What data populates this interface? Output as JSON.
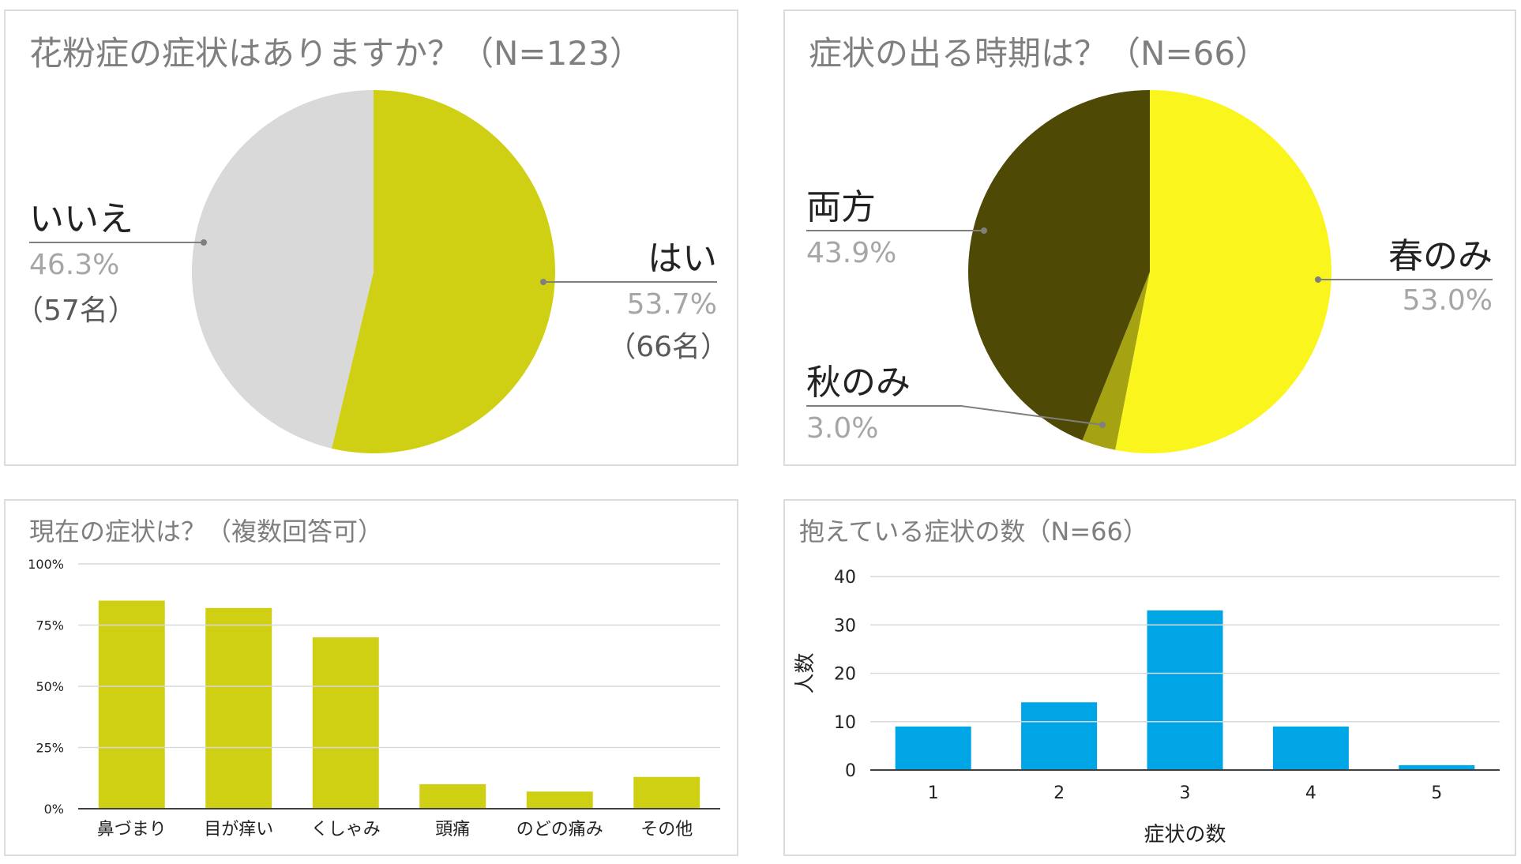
{
  "colors": {
    "yes": "#cfd013",
    "no": "#d9d9d9",
    "spring": "#faf51d",
    "autumn": "#a6a312",
    "both": "#4e4a05",
    "bar3": "#cfd013",
    "bar4": "#00a5e6",
    "gridline": "#d9d9d9",
    "leader": "#7f7f7f"
  },
  "chart_data": [
    {
      "type": "pie",
      "title": "花粉症の症状はありますか？（N=123）",
      "slices": [
        {
          "name": "はい",
          "percent_label": "53.7%",
          "count_label": "（66名）",
          "value": 53.7,
          "color_key": "yes"
        },
        {
          "name": "いいえ",
          "percent_label": "46.3%",
          "count_label": "（57名）",
          "value": 46.3,
          "color_key": "no"
        }
      ]
    },
    {
      "type": "pie",
      "title": "症状の出る時期は？（N=66）",
      "slices": [
        {
          "name": "春のみ",
          "percent_label": "53.0%",
          "value": 53.0,
          "color_key": "spring"
        },
        {
          "name": "秋のみ",
          "percent_label": "3.0%",
          "value": 3.0,
          "color_key": "autumn"
        },
        {
          "name": "両方",
          "percent_label": "43.9%",
          "value": 43.9,
          "color_key": "both"
        }
      ]
    },
    {
      "type": "bar",
      "title": "現在の症状は？（複数回答可）",
      "categories": [
        "鼻づまり",
        "目が痒い",
        "くしゃみ",
        "頭痛",
        "のどの痛み",
        "その他"
      ],
      "values": [
        85,
        82,
        70,
        10,
        7,
        13
      ],
      "ylim": [
        0,
        100
      ],
      "yticks": [
        0,
        25,
        50,
        75,
        100
      ],
      "ytick_labels": [
        "0%",
        "25%",
        "50%",
        "75%",
        "100%"
      ],
      "xlabel": "",
      "ylabel": ""
    },
    {
      "type": "bar",
      "title": "抱えている症状の数（N=66）",
      "categories": [
        "1",
        "2",
        "3",
        "4",
        "5"
      ],
      "values": [
        9,
        14,
        33,
        9,
        1
      ],
      "ylim": [
        0,
        40
      ],
      "yticks": [
        0,
        10,
        20,
        30,
        40
      ],
      "ytick_labels": [
        "0",
        "10",
        "20",
        "30",
        "40"
      ],
      "xlabel": "症状の数",
      "ylabel": "人数"
    }
  ]
}
